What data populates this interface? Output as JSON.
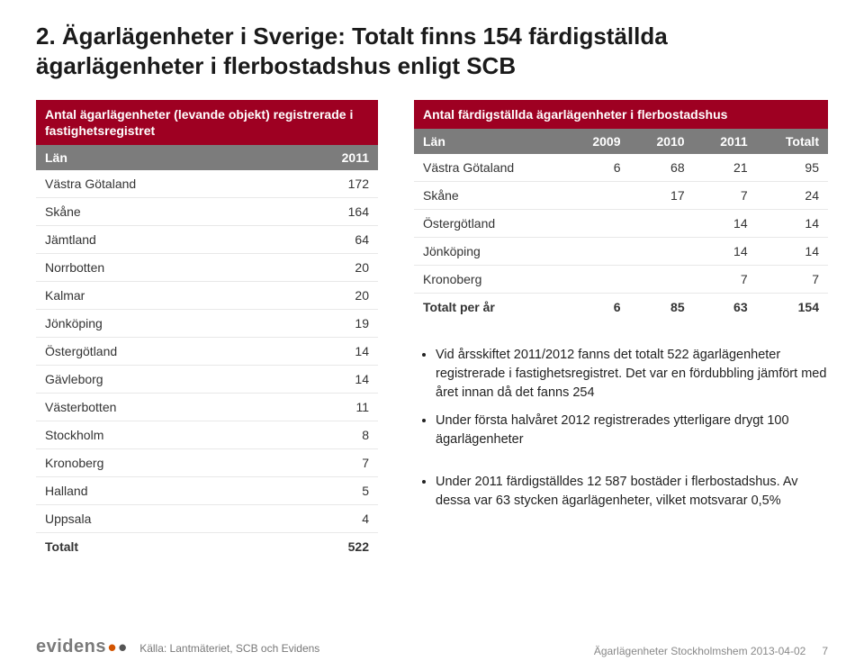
{
  "colors": {
    "accent": "#9e0022",
    "tableHeaderBg": "#7c7c7c",
    "tableHeaderFg": "#ffffff",
    "textPrimary": "#1a1a1a",
    "rowBorder": "#e8e8e8",
    "footerText": "#888888",
    "logoText": "#7a7a7a"
  },
  "title": "2. Ägarlägenheter i Sverige: Totalt finns 154 färdigställda ägarlägenheter i flerbostadshus enligt SCB",
  "leftTable": {
    "caption": "Antal ägarlägenheter (levande objekt) registrerade i fastighetsregistret",
    "headers": [
      "Län",
      "2011"
    ],
    "rows": [
      [
        "Västra Götaland",
        "172"
      ],
      [
        "Skåne",
        "164"
      ],
      [
        "Jämtland",
        "64"
      ],
      [
        "Norrbotten",
        "20"
      ],
      [
        "Kalmar",
        "20"
      ],
      [
        "Jönköping",
        "19"
      ],
      [
        "Östergötland",
        "14"
      ],
      [
        "Gävleborg",
        "14"
      ],
      [
        "Västerbotten",
        "11"
      ],
      [
        "Stockholm",
        "8"
      ],
      [
        "Kronoberg",
        "7"
      ],
      [
        "Halland",
        "5"
      ],
      [
        "Uppsala",
        "4"
      ]
    ],
    "totalRow": [
      "Totalt",
      "522"
    ]
  },
  "rightTable": {
    "caption": "Antal färdigställda ägarlägenheter i flerbostadshus",
    "headers": [
      "Län",
      "2009",
      "2010",
      "2011",
      "Totalt"
    ],
    "rows": [
      [
        "Västra Götaland",
        "6",
        "68",
        "21",
        "95"
      ],
      [
        "Skåne",
        "",
        "17",
        "7",
        "24"
      ],
      [
        "Östergötland",
        "",
        "",
        "14",
        "14"
      ],
      [
        "Jönköping",
        "",
        "",
        "14",
        "14"
      ],
      [
        "Kronoberg",
        "",
        "",
        "7",
        "7"
      ]
    ],
    "totalRow": [
      "Totalt per år",
      "6",
      "85",
      "63",
      "154"
    ]
  },
  "bullets": {
    "group1": [
      "Vid årsskiftet 2011/2012 fanns det totalt 522 ägarlägenheter registrerade i fastighetsregistret. Det var en fördubbling jämfört med året innan då det fanns 254",
      "Under första halvåret 2012 registrerades ytterligare drygt 100 ägarlägenheter"
    ],
    "group2": [
      "Under 2011 färdigställdes 12 587 bostäder i flerbostadshus. Av dessa var 63 stycken ägarlägenheter, vilket motsvarar 0,5%"
    ]
  },
  "footer": {
    "logo": "evidens",
    "source": "Källa: Lantmäteriet, SCB och Evidens",
    "context": "Ägarlägenheter Stockholmshem 2013-04-02",
    "pageNumber": "7"
  }
}
